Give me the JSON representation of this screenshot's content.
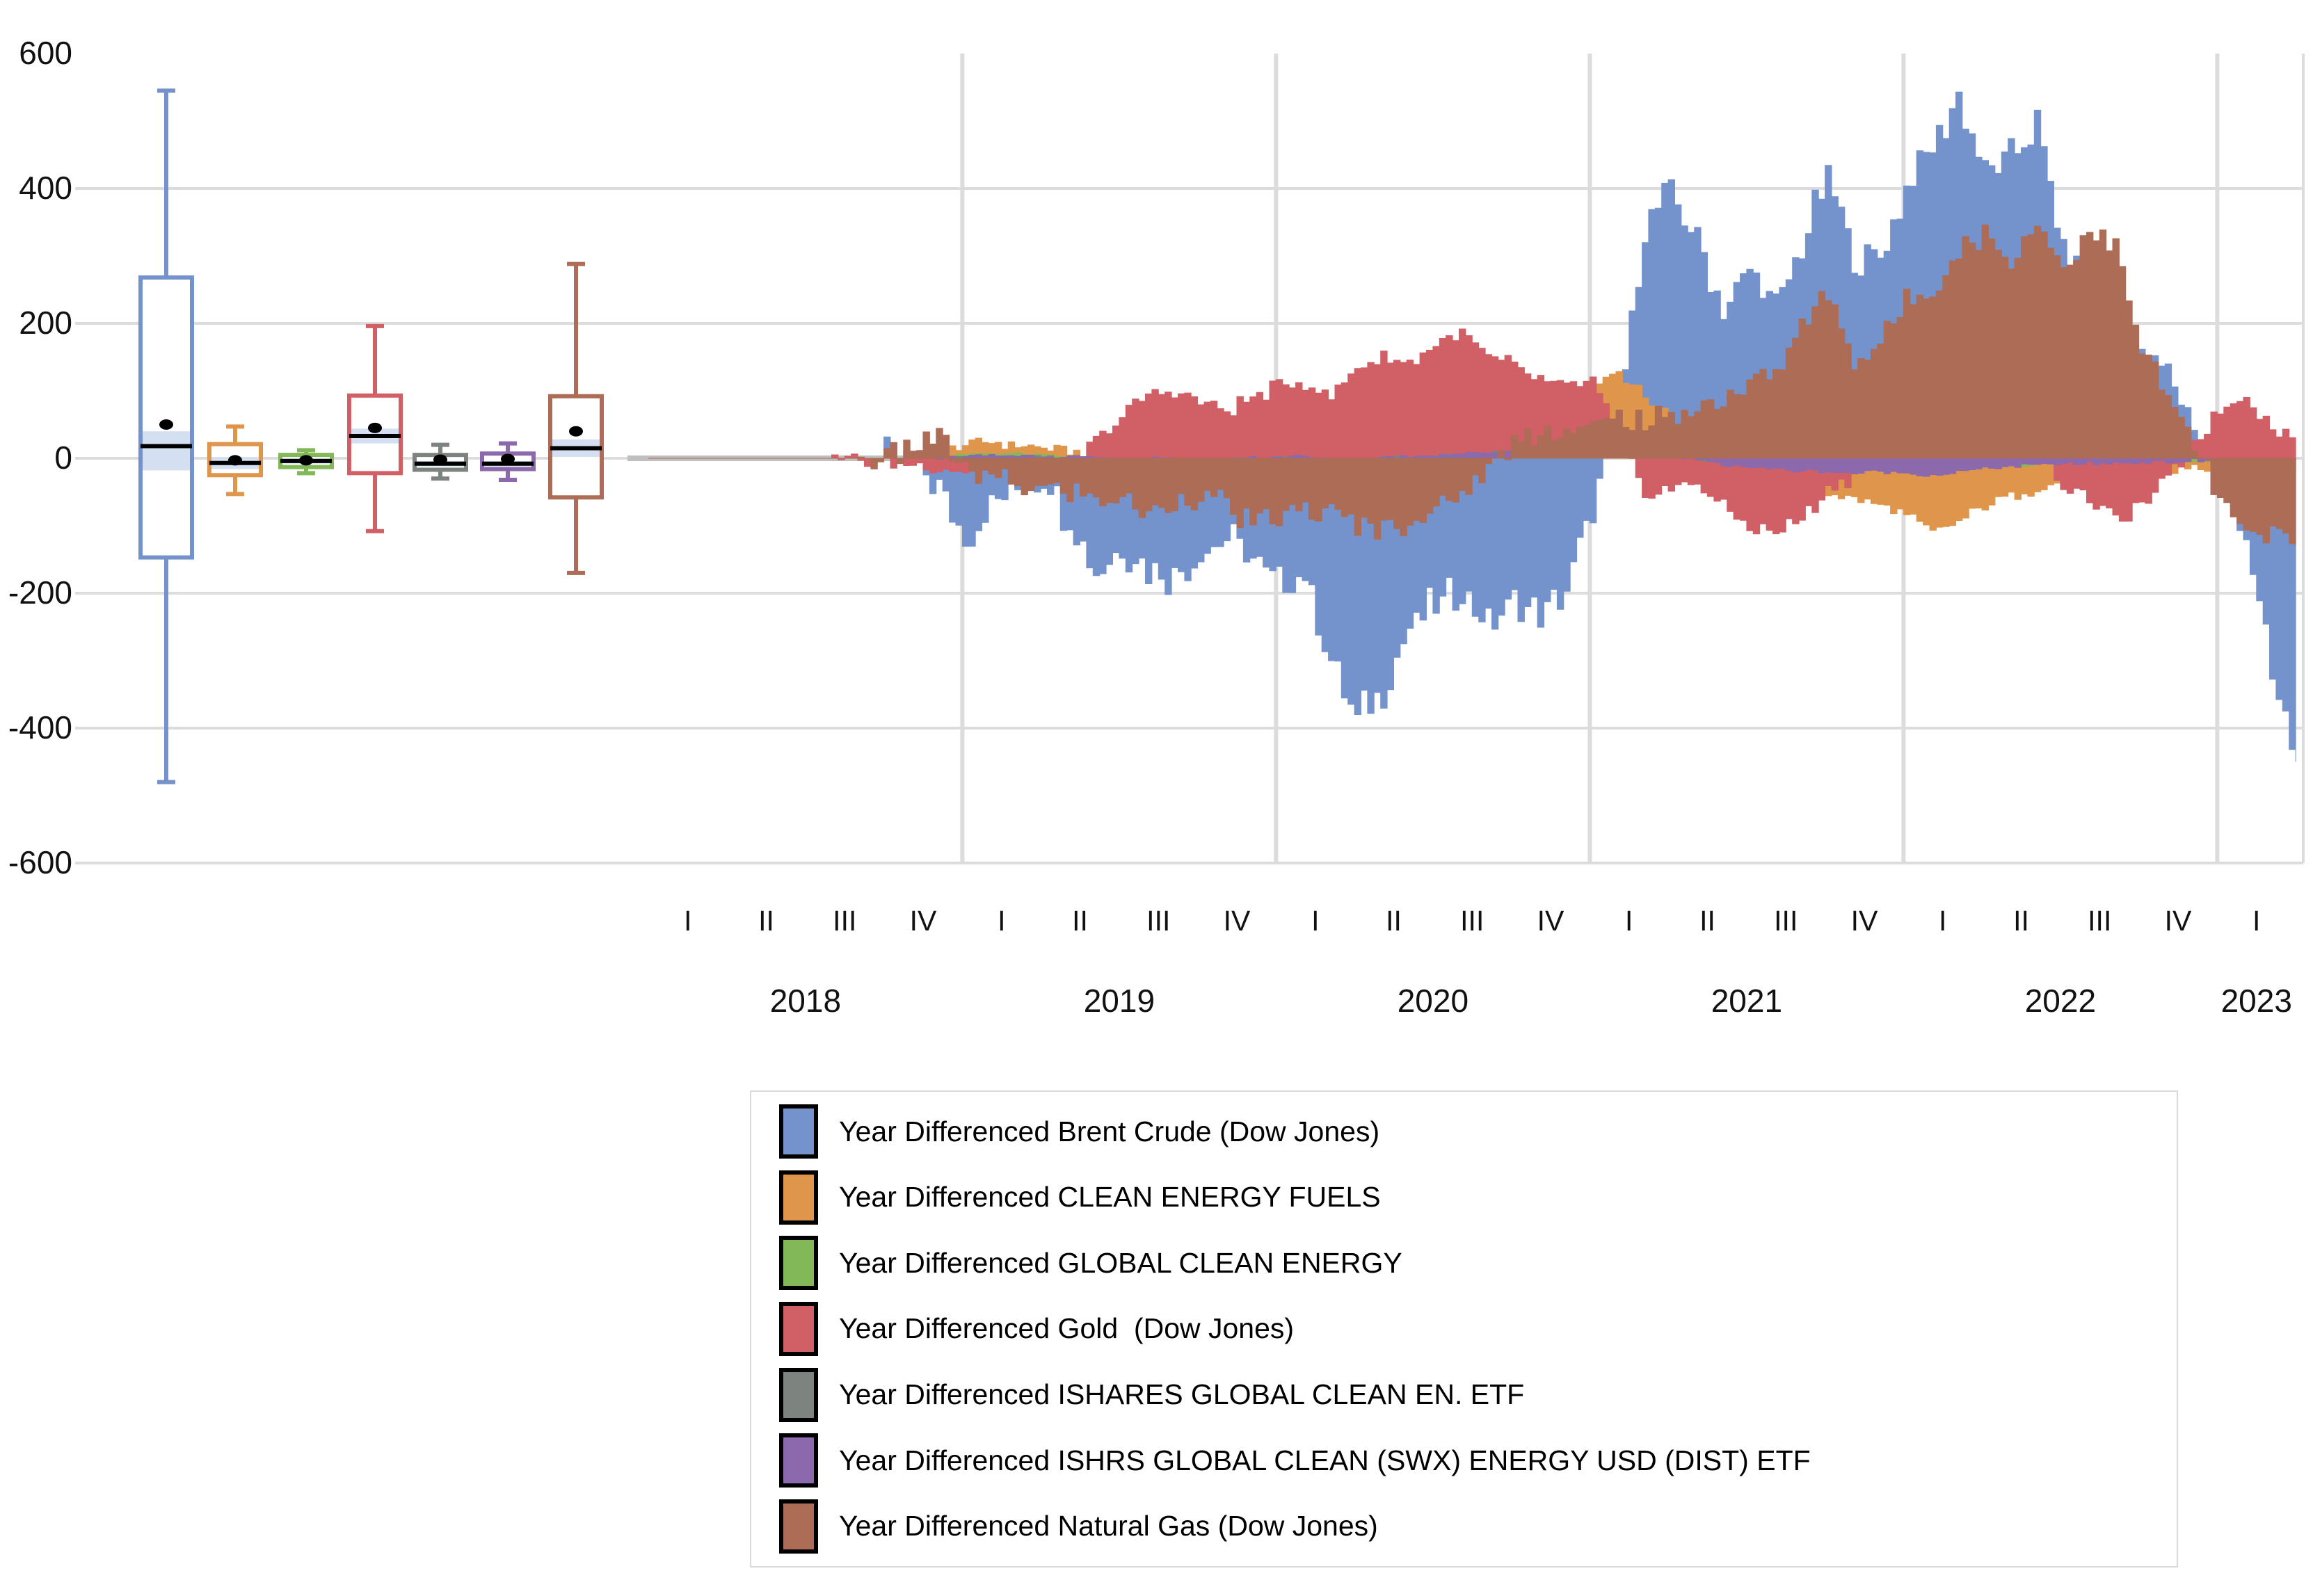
{
  "chart_data": {
    "type": "combo (box plots + year-differenced daily area series)",
    "title": "",
    "y_axis": {
      "min": -600,
      "max": 600,
      "tick_step": 200,
      "tick_values": [
        600,
        400,
        200,
        0,
        -200,
        -400,
        -600
      ],
      "tick_labels": [
        "600",
        "400",
        "200",
        "0",
        "-200",
        "-400",
        "-600"
      ],
      "grid": "on"
    },
    "x_axis": {
      "quarter_tick_label_set": [
        "I",
        "II",
        "III",
        "IV"
      ],
      "years": [
        {
          "label": "2018",
          "quarters": [
            "I",
            "II",
            "III",
            "IV"
          ]
        },
        {
          "label": "2019",
          "quarters": [
            "I",
            "II",
            "III",
            "IV"
          ]
        },
        {
          "label": "2020",
          "quarters": [
            "I",
            "II",
            "III",
            "IV"
          ]
        },
        {
          "label": "2021",
          "quarters": [
            "I",
            "II",
            "III",
            "IV"
          ]
        },
        {
          "label": "2022",
          "quarters": [
            "I",
            "II",
            "III",
            "IV"
          ]
        },
        {
          "label": "2023",
          "quarters": [
            "I"
          ]
        }
      ],
      "year_gridlines": "at each new year",
      "flat_zero_segment": "all series sit at 0 through 2018 (drawn as a plain gray line) until late December 2018"
    },
    "legend_position": "bottom-center boxed",
    "colors": {
      "gridline": "#dcdcdc",
      "flat_zero_line": "#bfbfbf",
      "ci_band": "#cfddf0",
      "box_fill": "#ffffff",
      "median_line": "#000000",
      "mean_marker": "#000000",
      "text": "#111111"
    },
    "value_resolution": "monthly estimates read from the dense daily chart; box stats read from the box plots",
    "monthly_start": "2018-01",
    "monthly_end": "2023-03",
    "series": [
      {
        "name": "Year Differenced Brent Crude (Dow Jones)",
        "color": "#7492cc",
        "boxplot": {
          "whisker_low": -480,
          "q1": -147,
          "median": 18,
          "mean": 50,
          "q3": 268,
          "whisker_high": 545,
          "ci_low": -18,
          "ci_high": 40
        },
        "monthly_values": [
          0,
          0,
          0,
          0,
          0,
          0,
          0,
          0,
          0,
          0,
          -5,
          -40,
          -120,
          -70,
          -45,
          -25,
          -90,
          -170,
          -130,
          -160,
          -175,
          -140,
          -120,
          -150,
          -190,
          -170,
          -300,
          -390,
          -340,
          -250,
          -220,
          -200,
          -245,
          -215,
          -230,
          -195,
          -80,
          60,
          350,
          390,
          330,
          220,
          280,
          220,
          310,
          420,
          300,
          300,
          400,
          460,
          540,
          420,
          440,
          500,
          310,
          240,
          190,
          140,
          130,
          50,
          -30,
          -110,
          -330
        ],
        "end_value": -450
      },
      {
        "name": "Year Differenced CLEAN ENERGY FUELS",
        "color": "#e0964a",
        "boxplot": {
          "whisker_low": -53,
          "q1": -25,
          "median": -7,
          "mean": -3,
          "q3": 21,
          "whisker_high": 47,
          "ci_low": -16,
          "ci_high": 2
        },
        "monthly_values": [
          0,
          0,
          0,
          0,
          0,
          0,
          0,
          0,
          0,
          0,
          0,
          10,
          20,
          25,
          20,
          15,
          10,
          5,
          0,
          -5,
          -5,
          0,
          5,
          5,
          0,
          -5,
          -15,
          -10,
          -5,
          0,
          5,
          10,
          15,
          30,
          60,
          80,
          110,
          130,
          90,
          60,
          20,
          -15,
          -30,
          -40,
          -45,
          -50,
          -60,
          -70,
          -85,
          -110,
          -95,
          -70,
          -55,
          -45,
          -35,
          -45,
          -40,
          -30,
          -20,
          -15,
          -15,
          -20,
          -15
        ],
        "end_value": -15
      },
      {
        "name": "Year Differenced GLOBAL CLEAN ENERGY",
        "color": "#82b857",
        "boxplot": {
          "whisker_low": -22,
          "q1": -13,
          "median": -4,
          "mean": -3,
          "q3": 5,
          "whisker_high": 12,
          "ci_low": -8,
          "ci_high": 0
        },
        "monthly_values": [
          0,
          0,
          0,
          0,
          0,
          0,
          0,
          0,
          0,
          0,
          0,
          0,
          5,
          8,
          6,
          4,
          2,
          0,
          -2,
          -3,
          -3,
          -2,
          0,
          2,
          3,
          2,
          -3,
          -2,
          0,
          3,
          5,
          8,
          10,
          14,
          18,
          22,
          24,
          20,
          12,
          5,
          -2,
          -8,
          -12,
          -14,
          -15,
          -16,
          -18,
          -16,
          -18,
          -20,
          -16,
          -12,
          -10,
          -8,
          -6,
          -7,
          -6,
          -5,
          -4,
          -3,
          -3,
          -4,
          -3
        ],
        "end_value": -3
      },
      {
        "name": "Year Differenced Gold  (Dow Jones)",
        "color": "#d05f66",
        "boxplot": {
          "whisker_low": -108,
          "q1": -22,
          "median": 33,
          "mean": 45,
          "q3": 93,
          "whisker_high": 196,
          "ci_low": 22,
          "ci_high": 44
        },
        "monthly_values": [
          0,
          0,
          0,
          0,
          0,
          0,
          0,
          0,
          -3,
          -5,
          -8,
          -12,
          -20,
          -18,
          -15,
          -10,
          -18,
          25,
          60,
          95,
          100,
          85,
          70,
          90,
          105,
          115,
          90,
          135,
          150,
          140,
          170,
          185,
          150,
          135,
          115,
          105,
          115,
          25,
          -55,
          -45,
          -35,
          -75,
          -100,
          -110,
          -90,
          -45,
          -25,
          -5,
          5,
          40,
          70,
          60,
          40,
          10,
          -40,
          -60,
          -90,
          -70,
          -30,
          25,
          70,
          95,
          45
        ],
        "end_value": 25
      },
      {
        "name": "Year Differenced ISHARES GLOBAL CLEAN EN. ETF",
        "color": "#7d837e",
        "boxplot": {
          "whisker_low": -30,
          "q1": -17,
          "median": -8,
          "mean": -2,
          "q3": 5,
          "whisker_high": 20,
          "ci_low": -12,
          "ci_high": -4
        },
        "monthly_values": [
          0,
          0,
          0,
          0,
          0,
          0,
          0,
          0,
          0,
          0,
          0,
          0,
          2,
          3,
          3,
          2,
          1,
          0,
          -1,
          -2,
          -2,
          -1,
          0,
          1,
          2,
          1,
          -2,
          -1,
          1,
          2,
          4,
          6,
          8,
          11,
          14,
          18,
          19,
          16,
          10,
          4,
          -1,
          -6,
          -9,
          -11,
          -12,
          -13,
          -14,
          -13,
          -14,
          -15,
          -12,
          -9,
          -8,
          -6,
          -5,
          -5,
          -4,
          -4,
          -3,
          -2,
          -2,
          -3,
          -2
        ],
        "end_value": -2
      },
      {
        "name": "Year Differenced ISHRS GLOBAL CLEAN (SWX) ENERGY USD (DIST) ETF",
        "color": "#8c68ad",
        "boxplot": {
          "whisker_low": -32,
          "q1": -16,
          "median": -8,
          "mean": -1,
          "q3": 7,
          "whisker_high": 22,
          "ci_low": -12,
          "ci_high": -4
        },
        "monthly_values": [
          0,
          0,
          0,
          0,
          0,
          0,
          0,
          0,
          0,
          0,
          0,
          0,
          3,
          4,
          4,
          3,
          2,
          1,
          0,
          -1,
          -2,
          -1,
          0,
          1,
          2,
          2,
          -2,
          -1,
          1,
          3,
          5,
          7,
          9,
          12,
          15,
          19,
          21,
          17,
          11,
          4,
          -2,
          -8,
          -13,
          -16,
          -18,
          -20,
          -22,
          -20,
          -22,
          -25,
          -20,
          -15,
          -12,
          -10,
          -8,
          -8,
          -7,
          -6,
          -5,
          -4,
          -4,
          -5,
          -4
        ],
        "end_value": -4
      },
      {
        "name": "Year Differenced Natural Gas (Dow Jones)",
        "color": "#ad6c56",
        "boxplot": {
          "whisker_low": -170,
          "q1": -58,
          "median": 15,
          "mean": 40,
          "q3": 92,
          "whisker_high": 288,
          "ci_low": 2,
          "ci_high": 28
        },
        "monthly_values": [
          0,
          0,
          0,
          0,
          0,
          0,
          0,
          0,
          0,
          5,
          15,
          35,
          -15,
          -30,
          -40,
          -45,
          -50,
          -60,
          -60,
          -85,
          -60,
          -50,
          -70,
          -100,
          -90,
          -75,
          -85,
          -95,
          -100,
          -90,
          -80,
          -50,
          -15,
          25,
          45,
          40,
          45,
          60,
          50,
          60,
          75,
          90,
          110,
          130,
          190,
          250,
          140,
          170,
          230,
          250,
          310,
          330,
          290,
          350,
          280,
          340,
          310,
          160,
          90,
          20,
          -60,
          -120,
          -110
        ],
        "end_value": -130
      }
    ]
  }
}
